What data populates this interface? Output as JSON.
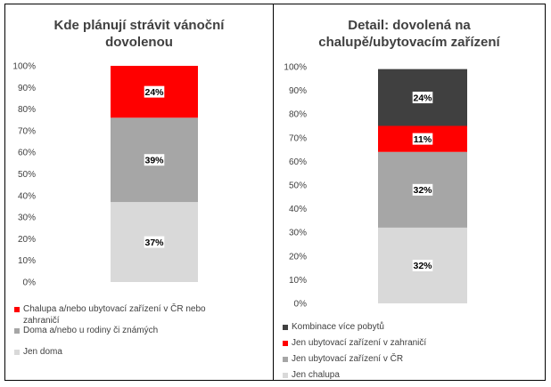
{
  "charts": [
    {
      "id": "left",
      "title_line1": "Kde plánují strávit vánoční",
      "title_line2": "dovolenou",
      "chart_data": {
        "type": "bar",
        "stacked": true,
        "categories": [
          ""
        ],
        "series": [
          {
            "name": "Jen doma",
            "values": [
              37
            ],
            "color": "#d9d9d9"
          },
          {
            "name": "Doma a/nebo u rodiny či známých",
            "values": [
              39
            ],
            "color": "#a6a6a6"
          },
          {
            "name": "Chalupa a/nebo ubytovací zařízení v ČR nebo zahraničí",
            "values": [
              24
            ],
            "color": "#ff0000"
          }
        ],
        "data_labels": [
          "37%",
          "39%",
          "24%"
        ],
        "ylim": [
          0,
          100
        ],
        "yticks": [
          "0%",
          "10%",
          "20%",
          "30%",
          "40%",
          "50%",
          "60%",
          "70%",
          "80%",
          "90%",
          "100%"
        ],
        "legend_position": "bottom"
      },
      "legend": [
        {
          "label_lines": [
            "Chalupa a/nebo ubytovací zařízení v ČR nebo",
            "zahraničí"
          ],
          "color": "#ff0000"
        },
        {
          "label_lines": [
            "Doma a/nebo u rodiny či známých"
          ],
          "color": "#a6a6a6"
        },
        {
          "label_lines": [
            "Jen doma"
          ],
          "color": "#d9d9d9"
        }
      ]
    },
    {
      "id": "right",
      "title_line1": "Detail: dovolená na",
      "title_line2": "chalupě/ubytovacím zařízení",
      "chart_data": {
        "type": "bar",
        "stacked": true,
        "categories": [
          ""
        ],
        "series": [
          {
            "name": "Jen chalupa",
            "values": [
              32
            ],
            "color": "#d9d9d9"
          },
          {
            "name": "Jen ubytovací zařízení v ČR",
            "values": [
              32
            ],
            "color": "#a6a6a6"
          },
          {
            "name": "Jen ubytovací zařízení v zahraničí",
            "values": [
              11
            ],
            "color": "#ff0000"
          },
          {
            "name": "Kombinace více pobytů",
            "values": [
              24
            ],
            "color": "#404040"
          }
        ],
        "data_labels": [
          "32%",
          "32%",
          "11%",
          "24%"
        ],
        "ylim": [
          0,
          100
        ],
        "yticks": [
          "0%",
          "10%",
          "20%",
          "30%",
          "40%",
          "50%",
          "60%",
          "70%",
          "80%",
          "90%",
          "100%"
        ],
        "legend_position": "bottom"
      },
      "legend": [
        {
          "label_lines": [
            "Kombinace více pobytů"
          ],
          "color": "#404040"
        },
        {
          "label_lines": [
            "Jen ubytovací zařízení v zahraničí"
          ],
          "color": "#ff0000"
        },
        {
          "label_lines": [
            "Jen ubytovací zařízení v ČR"
          ],
          "color": "#a6a6a6"
        },
        {
          "label_lines": [
            "Jen chalupa"
          ],
          "color": "#d9d9d9"
        }
      ]
    }
  ]
}
